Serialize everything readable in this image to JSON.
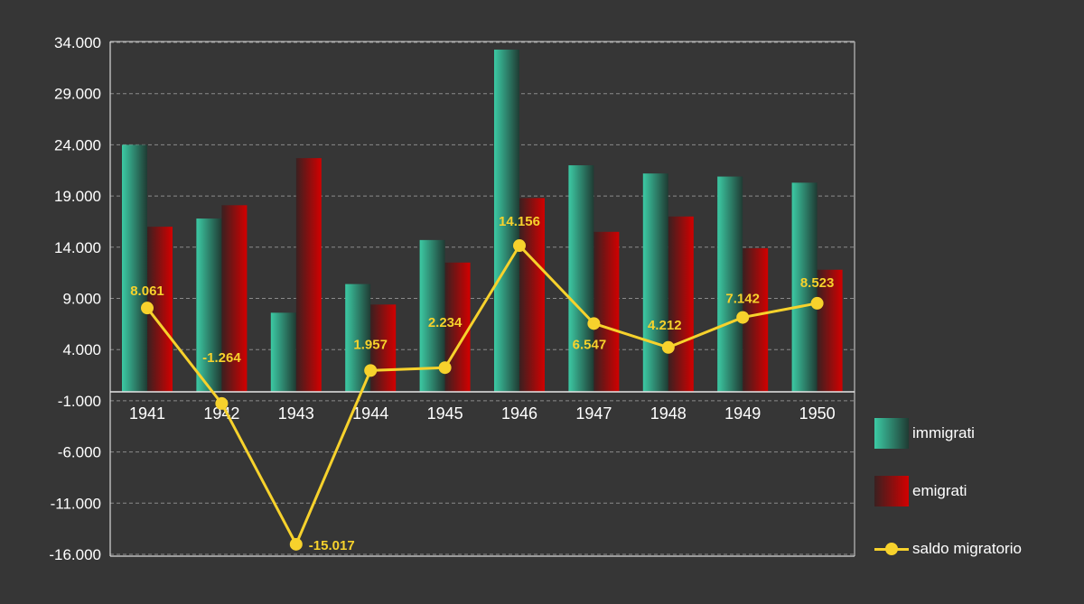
{
  "chart_data": {
    "type": "bar",
    "title": "",
    "xlabel": "",
    "ylabel": "",
    "categories": [
      "1941",
      "1942",
      "1943",
      "1944",
      "1945",
      "1946",
      "1947",
      "1948",
      "1949",
      "1950"
    ],
    "series": [
      {
        "name": "immigrati",
        "type": "bar",
        "color": "#2db894",
        "values": [
          24000,
          16800,
          7600,
          10400,
          14700,
          33300,
          22000,
          21200,
          20900,
          20300
        ]
      },
      {
        "name": "emigrati",
        "type": "bar",
        "color": "#c00000",
        "values": [
          16000,
          18100,
          22700,
          8400,
          12500,
          18800,
          15500,
          17000,
          13900,
          11800
        ]
      },
      {
        "name": "saldo migratorio",
        "type": "line",
        "color": "#f7d22c",
        "values": [
          8061,
          -1264,
          -15017,
          1957,
          2234,
          14156,
          6547,
          4212,
          7142,
          8523
        ],
        "labels": [
          "8.061",
          "-1.264",
          "-15.017",
          "1.957",
          "2.234",
          "14.156",
          "6.547",
          "4.212",
          "7.142",
          "8.523"
        ]
      }
    ],
    "yticks": [
      34000,
      29000,
      24000,
      19000,
      14000,
      9000,
      4000,
      -1000,
      -6000,
      -11000,
      -16000
    ],
    "ytick_labels": [
      "34.000",
      "29.000",
      "24.000",
      "19.000",
      "14.000",
      "9.000",
      "4.000",
      "-1.000",
      "-6.000",
      "-11.000",
      "-16.000"
    ],
    "ylim": [
      -16000,
      34000
    ],
    "grid": true,
    "legend_position": "bottom-right"
  }
}
